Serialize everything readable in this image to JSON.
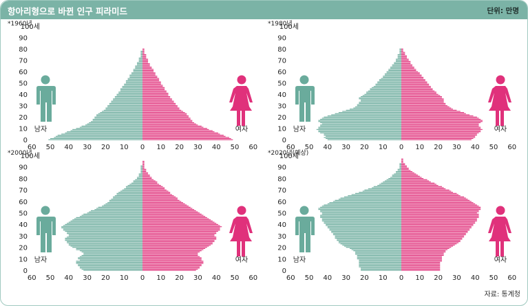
{
  "title": "항아리형으로 바뀐 인구 피라미드",
  "unit_label": "단위: 만명",
  "source_label": "자료: 통계청",
  "colors": {
    "male": "#6aab9c",
    "female": "#e0317b",
    "header_bg": "#7bb3a6"
  },
  "icons": {
    "male": "male-person-icon",
    "female": "female-person-icon"
  },
  "chart_data": [
    {
      "type": "bar",
      "title": "*1960년",
      "male_label": "남자",
      "female_label": "여자",
      "y_ticks": [
        "0",
        "10",
        "20",
        "30",
        "40",
        "50",
        "60",
        "70",
        "80",
        "90",
        "100세"
      ],
      "x_ticks": [
        "60",
        "50",
        "40",
        "30",
        "20",
        "10",
        "0",
        "10",
        "20",
        "30",
        "40",
        "50",
        "60"
      ],
      "xlim": [
        0,
        60
      ],
      "age_range": [
        0,
        80
      ],
      "age_step": 1,
      "series": [
        {
          "name": "남자",
          "values": [
            51,
            50,
            48,
            47,
            46,
            44,
            42,
            41,
            39,
            38,
            36,
            34,
            33,
            31,
            30,
            29,
            28,
            27,
            27,
            26,
            26,
            25,
            25,
            24,
            23,
            22,
            21,
            20,
            20,
            19,
            19,
            18,
            18,
            17,
            17,
            16,
            16,
            15,
            15,
            14,
            14,
            13,
            13,
            12,
            12,
            12,
            11,
            11,
            10,
            10,
            9,
            9,
            9,
            8,
            8,
            7,
            7,
            7,
            6,
            6,
            5,
            5,
            5,
            4,
            4,
            4,
            3,
            3,
            3,
            2,
            2,
            2,
            2,
            1,
            1,
            1,
            1,
            1,
            1,
            0,
            0
          ]
        },
        {
          "name": "여자",
          "values": [
            49,
            48,
            47,
            45,
            44,
            42,
            41,
            39,
            38,
            36,
            35,
            33,
            32,
            30,
            29,
            28,
            27,
            27,
            26,
            26,
            25,
            25,
            24,
            24,
            23,
            22,
            21,
            20,
            20,
            19,
            19,
            18,
            18,
            17,
            17,
            16,
            16,
            15,
            15,
            14,
            14,
            14,
            13,
            13,
            12,
            12,
            12,
            11,
            11,
            10,
            10,
            10,
            9,
            9,
            9,
            8,
            8,
            7,
            7,
            7,
            6,
            6,
            6,
            5,
            5,
            4,
            4,
            4,
            3,
            3,
            3,
            3,
            2,
            2,
            2,
            2,
            1,
            1,
            1,
            1,
            1
          ]
        }
      ]
    },
    {
      "type": "bar",
      "title": "*1980년",
      "male_label": "남자",
      "female_label": "여자",
      "y_ticks": [
        "0",
        "10",
        "20",
        "30",
        "40",
        "50",
        "60",
        "70",
        "80",
        "90",
        "100세"
      ],
      "x_ticks": [
        "60",
        "50",
        "40",
        "30",
        "20",
        "10",
        "0",
        "10",
        "20",
        "30",
        "40",
        "50",
        "60"
      ],
      "xlim": [
        0,
        60
      ],
      "age_range": [
        0,
        80
      ],
      "age_step": 1,
      "series": [
        {
          "name": "남자",
          "values": [
            40,
            41,
            42,
            41,
            42,
            42,
            44,
            45,
            45,
            46,
            45,
            45,
            44,
            44,
            43,
            44,
            45,
            45,
            44,
            43,
            42,
            40,
            38,
            36,
            34,
            32,
            30,
            28,
            26,
            25,
            24,
            24,
            23,
            23,
            22,
            22,
            23,
            23,
            22,
            21,
            20,
            19,
            19,
            18,
            17,
            17,
            16,
            15,
            14,
            14,
            13,
            13,
            12,
            12,
            11,
            10,
            10,
            9,
            9,
            8,
            8,
            7,
            7,
            6,
            6,
            5,
            5,
            4,
            4,
            3,
            3,
            3,
            2,
            2,
            2,
            2,
            1,
            1,
            1,
            1,
            1
          ]
        },
        {
          "name": "여자",
          "values": [
            38,
            39,
            40,
            40,
            41,
            41,
            42,
            43,
            43,
            44,
            43,
            43,
            42,
            42,
            42,
            43,
            44,
            44,
            43,
            42,
            41,
            39,
            37,
            35,
            34,
            32,
            30,
            28,
            27,
            26,
            25,
            24,
            24,
            23,
            23,
            23,
            23,
            22,
            22,
            21,
            20,
            19,
            19,
            18,
            17,
            17,
            16,
            16,
            15,
            15,
            14,
            14,
            13,
            13,
            12,
            12,
            11,
            11,
            10,
            10,
            9,
            8,
            8,
            7,
            7,
            6,
            6,
            5,
            5,
            5,
            4,
            4,
            3,
            3,
            3,
            2,
            2,
            2,
            1,
            1,
            1
          ]
        }
      ]
    },
    {
      "type": "bar",
      "title": "*2000년",
      "male_label": "남자",
      "female_label": "여자",
      "y_ticks": [
        "0",
        "10",
        "20",
        "30",
        "40",
        "50",
        "60",
        "70",
        "80",
        "90",
        "100세"
      ],
      "x_ticks": [
        "60",
        "50",
        "40",
        "30",
        "20",
        "10",
        "0",
        "10",
        "20",
        "30",
        "40",
        "50",
        "60"
      ],
      "xlim": [
        0,
        60
      ],
      "age_range": [
        0,
        100
      ],
      "age_step": 1,
      "series": [
        {
          "name": "남자",
          "values": [
            32,
            33,
            34,
            34,
            35,
            35,
            36,
            36,
            36,
            34,
            35,
            35,
            34,
            33,
            32,
            32,
            33,
            34,
            36,
            36,
            38,
            39,
            40,
            40,
            41,
            41,
            42,
            42,
            42,
            41,
            40,
            40,
            41,
            41,
            42,
            43,
            43,
            44,
            44,
            43,
            42,
            41,
            40,
            39,
            38,
            37,
            36,
            34,
            33,
            32,
            30,
            29,
            28,
            26,
            25,
            24,
            22,
            21,
            20,
            19,
            18,
            18,
            17,
            16,
            16,
            15,
            14,
            14,
            13,
            12,
            11,
            10,
            9,
            9,
            8,
            7,
            6,
            5,
            5,
            4,
            3,
            3,
            2,
            2,
            2,
            1,
            1,
            1,
            1,
            1,
            1,
            1,
            0,
            0,
            0,
            0,
            0,
            0,
            0,
            0,
            0
          ]
        },
        {
          "name": "여자",
          "values": [
            29,
            30,
            31,
            31,
            32,
            32,
            33,
            33,
            33,
            32,
            32,
            32,
            31,
            30,
            30,
            30,
            31,
            32,
            33,
            34,
            35,
            36,
            37,
            38,
            38,
            39,
            39,
            40,
            40,
            40,
            39,
            39,
            40,
            40,
            41,
            42,
            42,
            42,
            43,
            42,
            41,
            40,
            39,
            38,
            37,
            36,
            35,
            34,
            33,
            32,
            31,
            30,
            29,
            28,
            27,
            26,
            25,
            24,
            23,
            22,
            21,
            20,
            19,
            19,
            18,
            17,
            16,
            15,
            15,
            14,
            13,
            12,
            12,
            11,
            10,
            9,
            8,
            8,
            7,
            6,
            5,
            5,
            4,
            4,
            3,
            3,
            2,
            2,
            2,
            1,
            1,
            1,
            1,
            1,
            1,
            1,
            0,
            0,
            0,
            0,
            0
          ]
        }
      ]
    },
    {
      "type": "bar",
      "title": "*2020년(예상)",
      "male_label": "남자",
      "female_label": "여자",
      "y_ticks": [
        "0",
        "10",
        "20",
        "30",
        "40",
        "50",
        "60",
        "70",
        "80",
        "90",
        "100세"
      ],
      "x_ticks": [
        "60",
        "50",
        "40",
        "30",
        "20",
        "10",
        "0",
        "10",
        "20",
        "30",
        "40",
        "50",
        "60"
      ],
      "xlim": [
        0,
        60
      ],
      "age_range": [
        0,
        100
      ],
      "age_step": 1,
      "series": [
        {
          "name": "남자",
          "values": [
            22,
            22,
            22,
            23,
            23,
            23,
            23,
            23,
            23,
            23,
            24,
            24,
            24,
            24,
            25,
            25,
            25,
            26,
            27,
            28,
            30,
            31,
            32,
            33,
            34,
            34,
            35,
            35,
            36,
            36,
            36,
            37,
            37,
            38,
            38,
            39,
            39,
            40,
            40,
            41,
            41,
            42,
            42,
            43,
            43,
            43,
            44,
            44,
            44,
            43,
            43,
            44,
            44,
            45,
            45,
            44,
            43,
            42,
            40,
            39,
            37,
            36,
            34,
            33,
            31,
            29,
            27,
            25,
            23,
            21,
            20,
            18,
            16,
            15,
            13,
            12,
            11,
            10,
            9,
            8,
            7,
            6,
            5,
            5,
            4,
            3,
            3,
            2,
            2,
            1,
            1,
            1,
            1,
            1,
            0,
            0,
            0,
            0,
            0,
            0,
            0
          ]
        },
        {
          "name": "여자",
          "values": [
            21,
            21,
            21,
            21,
            21,
            21,
            21,
            21,
            22,
            22,
            22,
            22,
            22,
            23,
            23,
            23,
            24,
            24,
            25,
            26,
            27,
            28,
            29,
            30,
            31,
            32,
            32,
            33,
            33,
            34,
            34,
            35,
            35,
            36,
            36,
            37,
            37,
            38,
            38,
            39,
            39,
            40,
            40,
            41,
            41,
            41,
            42,
            42,
            42,
            42,
            41,
            42,
            42,
            43,
            43,
            43,
            42,
            41,
            40,
            39,
            38,
            37,
            36,
            35,
            34,
            32,
            31,
            30,
            28,
            27,
            26,
            24,
            23,
            22,
            20,
            19,
            18,
            16,
            15,
            14,
            12,
            11,
            10,
            9,
            8,
            7,
            6,
            5,
            4,
            4,
            3,
            3,
            2,
            2,
            1,
            1,
            1,
            1,
            0,
            0,
            0
          ]
        }
      ]
    }
  ]
}
